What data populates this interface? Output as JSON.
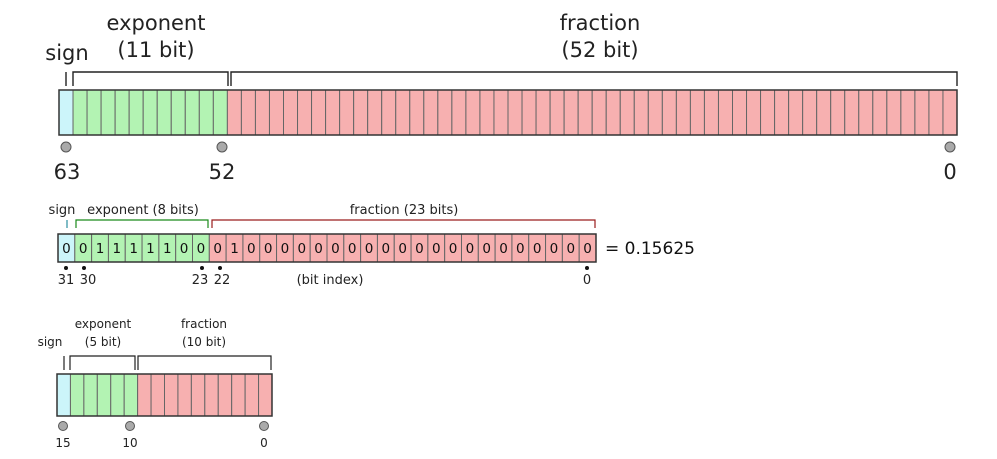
{
  "colors": {
    "sign": "#ccf5fa",
    "exponent": "#b3f3b3",
    "fraction": "#f7b0b0",
    "cell_border": "#666666",
    "marker": "#aaaaaa",
    "exponent_bracket_32": "#1a8a1a",
    "fraction_bracket_32": "#9a1d1d"
  },
  "double": {
    "labels": {
      "sign": "sign",
      "exponent": [
        "exponent",
        "(11 bit)"
      ],
      "fraction": [
        "fraction",
        "(52 bit)"
      ]
    },
    "bits": {
      "sign": 1,
      "exponent": 11,
      "fraction": 52
    },
    "markers": [
      "63",
      "52",
      "0"
    ]
  },
  "single": {
    "labels": {
      "sign": "sign",
      "exponent": "exponent (8 bits)",
      "fraction": "fraction (23 bits)",
      "bit_index": "(bit index)"
    },
    "bits": "00111110001000000000000000000000",
    "equals": "= 0.15625",
    "markers": [
      "31",
      "30",
      "23",
      "22",
      "0"
    ]
  },
  "half": {
    "labels": {
      "sign": "sign",
      "exponent": [
        "exponent",
        "(5 bit)"
      ],
      "fraction": [
        "fraction",
        "(10 bit)"
      ]
    },
    "bits": {
      "sign": 1,
      "exponent": 5,
      "fraction": 10
    },
    "markers": [
      "15",
      "10",
      "0"
    ]
  }
}
